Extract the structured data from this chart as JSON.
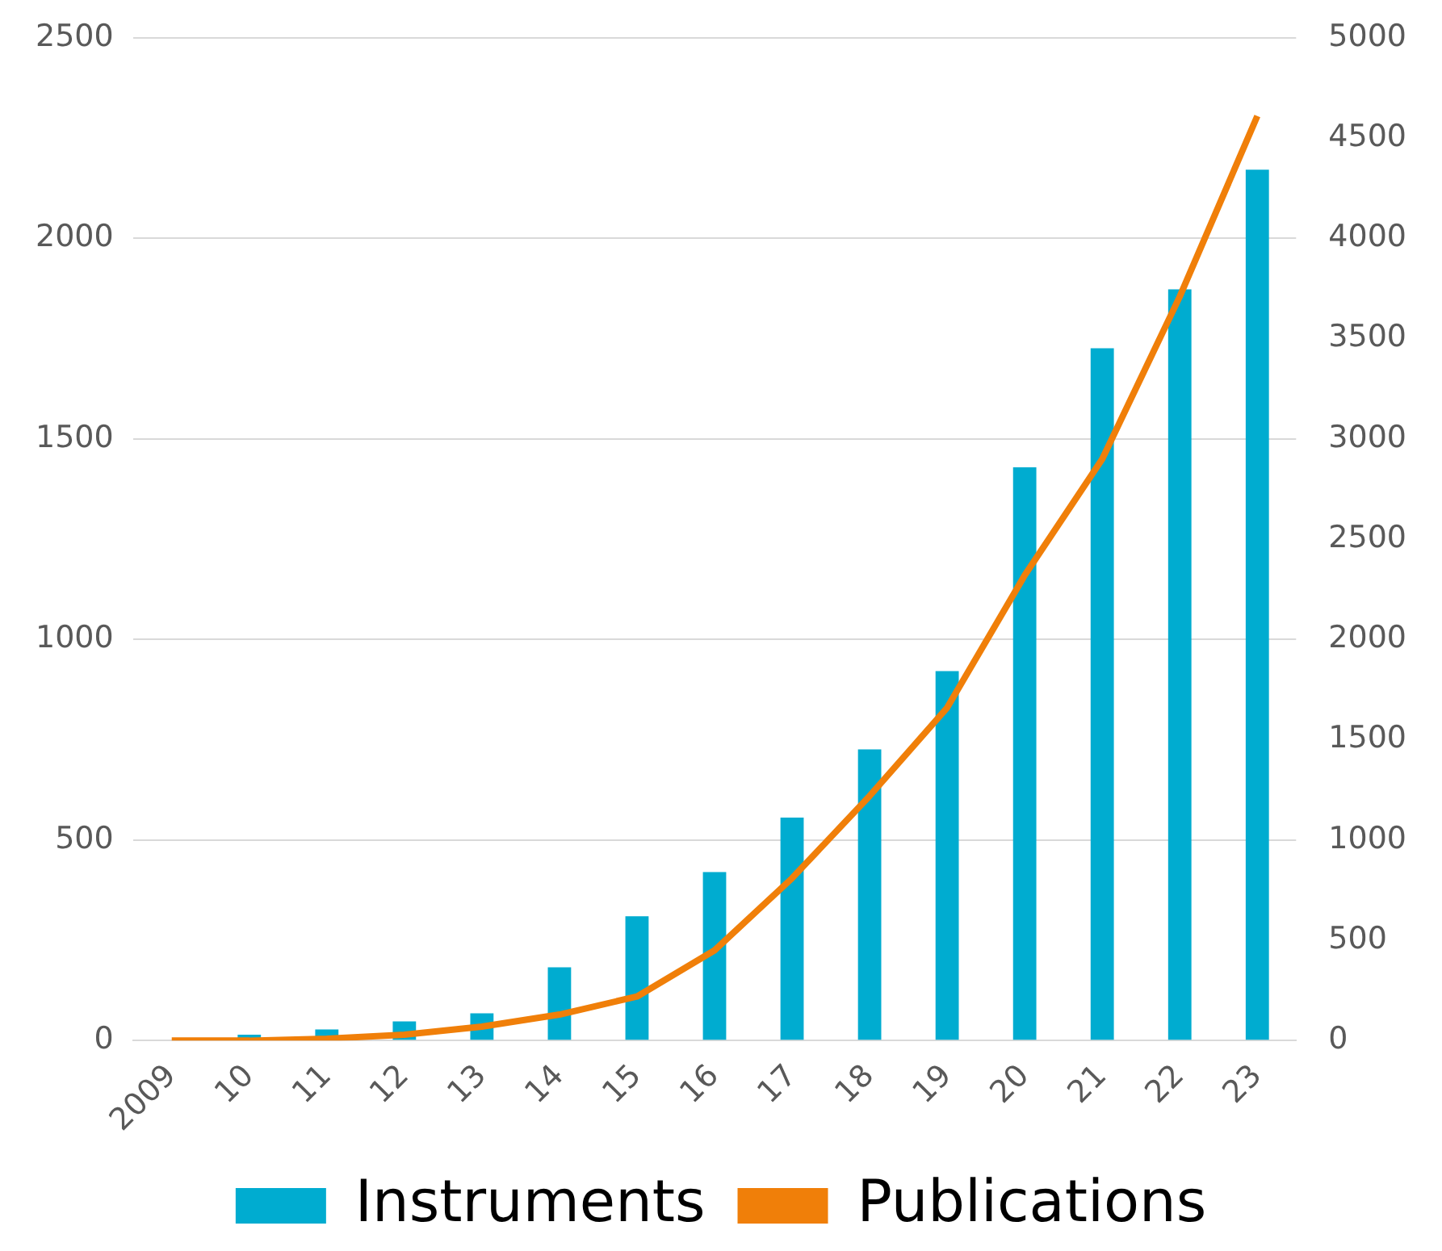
{
  "chart_data": {
    "type": "bar",
    "categories": [
      "2009",
      "10",
      "11",
      "12",
      "13",
      "14",
      "15",
      "16",
      "17",
      "18",
      "19",
      "20",
      "21",
      "22",
      "23"
    ],
    "series": [
      {
        "name": "Instruments",
        "color": "#00acd0",
        "values": [
          0,
          15,
          28,
          48,
          68,
          183,
          310,
          420,
          556,
          726,
          921,
          1429,
          1726,
          1873,
          2171
        ]
      },
      {
        "name": "Publications",
        "type": "line",
        "axis": "y2",
        "color": "#f07f09",
        "marker": "none",
        "values": [
          0,
          0,
          10,
          30,
          70,
          130,
          220,
          450,
          810,
          1220,
          1660,
          2320,
          2900,
          3710,
          4610
        ]
      }
    ],
    "ylim": [
      0,
      2500
    ],
    "yticks": [
      0,
      500,
      1000,
      1500,
      2000,
      2500
    ],
    "y2lim": [
      0,
      5000
    ],
    "y2ticks": [
      0,
      500,
      1000,
      1500,
      2000,
      2500,
      3000,
      3500,
      4000,
      4500,
      5000
    ],
    "grid": "y",
    "legend": "bottom"
  }
}
